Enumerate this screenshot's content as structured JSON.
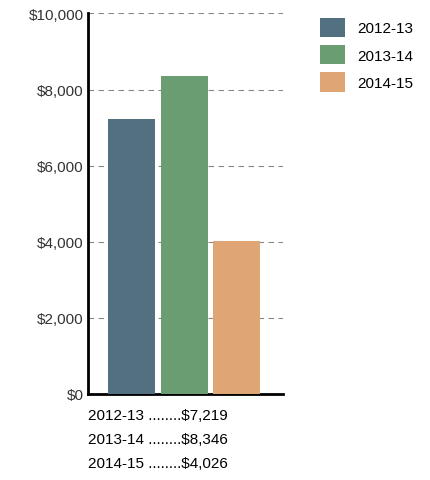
{
  "chart_data": {
    "type": "bar",
    "categories": [
      "2012-13",
      "2013-14",
      "2014-15"
    ],
    "values": [
      7219,
      8346,
      4026
    ],
    "colors": [
      "#52707f",
      "#6a9e72",
      "#e0a574"
    ],
    "ylim": [
      0,
      10000
    ],
    "yticks": [
      {
        "value": 0,
        "label": "$0"
      },
      {
        "value": 2000,
        "label": "$2,000"
      },
      {
        "value": 4000,
        "label": "$4,000"
      },
      {
        "value": 6000,
        "label": "$6,000"
      },
      {
        "value": 8000,
        "label": "$8,000"
      },
      {
        "value": 10000,
        "label": "$10,000"
      }
    ],
    "grid": true,
    "legend": "upper right",
    "tick_labels": "y",
    "annotations": [
      "2012-13 ........$7,219",
      "2013-14 ........$8,346",
      "2014-15 ........$4,026"
    ]
  }
}
